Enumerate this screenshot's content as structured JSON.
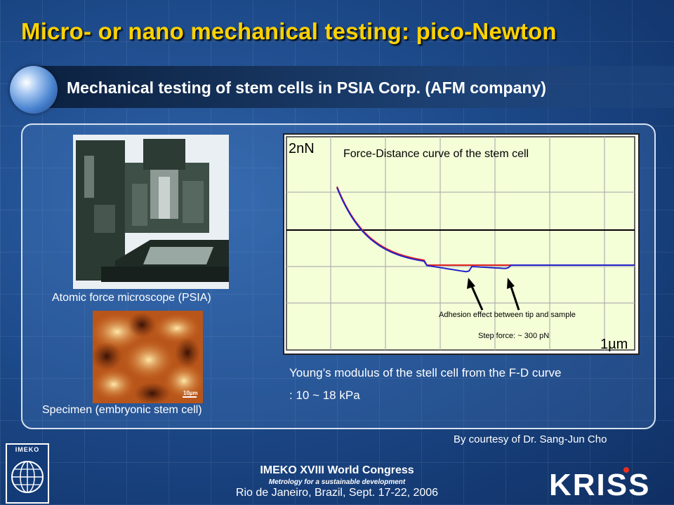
{
  "slide": {
    "title": "Micro- or nano mechanical testing: pico-Newton",
    "subtitle": "Mechanical testing of stem cells in PSIA Corp. (AFM company)"
  },
  "left": {
    "afm_caption": "Atomic force microscope (PSIA)",
    "specimen_caption": "Specimen (embryonic stem cell)",
    "scale_label": "10µm"
  },
  "chart_data": {
    "type": "line",
    "title": "Force-Distance curve of the stem cell",
    "y_scale_label": "2nN",
    "x_scale_label": "1µm",
    "annotation_adhesion": "Adhesion effect between tip and sample",
    "annotation_step": "Step force: ~ 300 pN",
    "grid": true,
    "colors": {
      "retract": "#2222cc",
      "approach": "#e02020",
      "baseline": "#000000",
      "grid": "#b0b0b0"
    }
  },
  "result": {
    "line1": "Young’s modulus of the stell cell from the F-D curve",
    "line2": ": 10 ~ 18 kPa"
  },
  "credit": "By courtesy of Dr. Sang-Jun Cho",
  "footer": {
    "congress": "IMEKO XVIII World Congress",
    "theme": "Metrology for a sustainable development",
    "venue": "Rio de Janeiro, Brazil, Sept. 17-22, 2006",
    "logo_left": "IMEKO",
    "logo_right": "KRISS"
  }
}
